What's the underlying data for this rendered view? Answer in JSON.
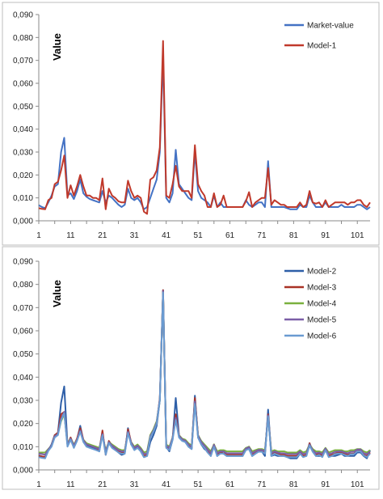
{
  "chart_data": [
    {
      "type": "line",
      "ylabel": "Value",
      "ylim": [
        0,
        0.09
      ],
      "y_ticks": [
        "0,000",
        "0,010",
        "0,020",
        "0,030",
        "0,040",
        "0,050",
        "0,060",
        "0,070",
        "0,080",
        "0,090"
      ],
      "x_ticks": [
        "1",
        "11",
        "21",
        "31",
        "41",
        "51",
        "61",
        "71",
        "81",
        "91",
        "101"
      ],
      "xlim": [
        1,
        105
      ],
      "legend_position": "top-right",
      "series": [
        {
          "name": "Market-value",
          "color": "#4472C4",
          "values": [
            0.0068,
            0.006,
            0.0055,
            0.008,
            0.011,
            0.015,
            0.016,
            0.03,
            0.0362,
            0.011,
            0.012,
            0.0095,
            0.013,
            0.018,
            0.012,
            0.0105,
            0.0095,
            0.009,
            0.0085,
            0.008,
            0.013,
            0.008,
            0.011,
            0.01,
            0.0085,
            0.007,
            0.006,
            0.007,
            0.014,
            0.01,
            0.009,
            0.01,
            0.008,
            0.005,
            0.006,
            0.01,
            0.014,
            0.018,
            0.03,
            0.072,
            0.01,
            0.008,
            0.012,
            0.031,
            0.016,
            0.014,
            0.012,
            0.01,
            0.009,
            0.03,
            0.013,
            0.01,
            0.009,
            0.008,
            0.006,
            0.011,
            0.006,
            0.008,
            0.006,
            0.006,
            0.006,
            0.006,
            0.006,
            0.006,
            0.006,
            0.009,
            0.007,
            0.006,
            0.007,
            0.008,
            0.008,
            0.006,
            0.026,
            0.006,
            0.006,
            0.006,
            0.006,
            0.006,
            0.0055,
            0.005,
            0.005,
            0.005,
            0.007,
            0.006,
            0.006,
            0.011,
            0.008,
            0.006,
            0.006,
            0.006,
            0.008,
            0.006,
            0.006,
            0.006,
            0.006,
            0.007,
            0.006,
            0.006,
            0.006,
            0.006,
            0.007,
            0.007,
            0.006,
            0.005,
            0.006
          ]
        },
        {
          "name": "Model-1",
          "color": "#C0392B",
          "values": [
            0.0055,
            0.0052,
            0.005,
            0.009,
            0.01,
            0.016,
            0.017,
            0.022,
            0.0285,
            0.01,
            0.0155,
            0.011,
            0.015,
            0.02,
            0.015,
            0.011,
            0.011,
            0.01,
            0.01,
            0.009,
            0.0185,
            0.005,
            0.014,
            0.011,
            0.01,
            0.0085,
            0.008,
            0.008,
            0.0175,
            0.013,
            0.01,
            0.011,
            0.01,
            0.004,
            0.003,
            0.018,
            0.019,
            0.022,
            0.032,
            0.0785,
            0.011,
            0.01,
            0.016,
            0.024,
            0.015,
            0.013,
            0.013,
            0.013,
            0.01,
            0.033,
            0.016,
            0.013,
            0.011,
            0.006,
            0.006,
            0.012,
            0.006,
            0.007,
            0.011,
            0.006,
            0.006,
            0.006,
            0.006,
            0.006,
            0.006,
            0.0085,
            0.0125,
            0.006,
            0.008,
            0.009,
            0.01,
            0.01,
            0.023,
            0.007,
            0.009,
            0.008,
            0.007,
            0.007,
            0.006,
            0.006,
            0.006,
            0.006,
            0.008,
            0.006,
            0.007,
            0.013,
            0.008,
            0.0075,
            0.008,
            0.006,
            0.009,
            0.006,
            0.007,
            0.008,
            0.008,
            0.008,
            0.008,
            0.007,
            0.008,
            0.008,
            0.009,
            0.009,
            0.007,
            0.006,
            0.008
          ]
        }
      ]
    },
    {
      "type": "line",
      "ylabel": "Value",
      "ylim": [
        0,
        0.09
      ],
      "y_ticks": [
        "0,000",
        "0,010",
        "0,020",
        "0,030",
        "0,040",
        "0,050",
        "0,060",
        "0,070",
        "0,080",
        "0,090"
      ],
      "x_ticks": [
        "1",
        "11",
        "21",
        "31",
        "41",
        "51",
        "61",
        "71",
        "81",
        "91",
        "101"
      ],
      "xlim": [
        1,
        105
      ],
      "legend_position": "top-right",
      "series": [
        {
          "name": "Model-2",
          "color": "#2E5FA8",
          "values": [
            0.0062,
            0.0058,
            0.0055,
            0.0085,
            0.011,
            0.015,
            0.016,
            0.029,
            0.036,
            0.011,
            0.013,
            0.01,
            0.013,
            0.019,
            0.0125,
            0.0105,
            0.01,
            0.0095,
            0.009,
            0.008,
            0.016,
            0.007,
            0.012,
            0.01,
            0.009,
            0.0075,
            0.0065,
            0.007,
            0.018,
            0.011,
            0.009,
            0.01,
            0.008,
            0.0055,
            0.006,
            0.012,
            0.015,
            0.019,
            0.03,
            0.0775,
            0.01,
            0.008,
            0.013,
            0.031,
            0.015,
            0.013,
            0.012,
            0.01,
            0.009,
            0.032,
            0.014,
            0.011,
            0.009,
            0.008,
            0.006,
            0.011,
            0.006,
            0.0075,
            0.007,
            0.006,
            0.006,
            0.006,
            0.006,
            0.006,
            0.006,
            0.009,
            0.009,
            0.006,
            0.007,
            0.008,
            0.008,
            0.006,
            0.026,
            0.006,
            0.0065,
            0.006,
            0.006,
            0.006,
            0.0055,
            0.005,
            0.005,
            0.005,
            0.007,
            0.006,
            0.006,
            0.0115,
            0.008,
            0.006,
            0.006,
            0.006,
            0.009,
            0.006,
            0.006,
            0.006,
            0.0065,
            0.007,
            0.006,
            0.006,
            0.006,
            0.006,
            0.0075,
            0.0075,
            0.006,
            0.005,
            0.0085
          ]
        },
        {
          "name": "Model-3",
          "color": "#A93226",
          "values": [
            0.006,
            0.0058,
            0.0056,
            0.0088,
            0.0105,
            0.015,
            0.016,
            0.024,
            0.025,
            0.011,
            0.014,
            0.0105,
            0.0135,
            0.018,
            0.013,
            0.011,
            0.0105,
            0.01,
            0.0095,
            0.0085,
            0.017,
            0.0065,
            0.0125,
            0.0105,
            0.0095,
            0.008,
            0.0075,
            0.0075,
            0.0175,
            0.012,
            0.0095,
            0.0105,
            0.009,
            0.006,
            0.0065,
            0.014,
            0.017,
            0.02,
            0.031,
            0.0775,
            0.01,
            0.009,
            0.014,
            0.024,
            0.015,
            0.013,
            0.0125,
            0.011,
            0.0095,
            0.031,
            0.015,
            0.012,
            0.01,
            0.008,
            0.0065,
            0.011,
            0.0065,
            0.0075,
            0.008,
            0.0065,
            0.0065,
            0.0065,
            0.0065,
            0.0065,
            0.0065,
            0.009,
            0.01,
            0.0065,
            0.0075,
            0.0085,
            0.0085,
            0.0075,
            0.024,
            0.0065,
            0.0075,
            0.007,
            0.0065,
            0.0065,
            0.006,
            0.006,
            0.006,
            0.006,
            0.0075,
            0.006,
            0.0065,
            0.0115,
            0.008,
            0.0065,
            0.007,
            0.006,
            0.009,
            0.006,
            0.0065,
            0.007,
            0.0075,
            0.0075,
            0.007,
            0.0065,
            0.007,
            0.007,
            0.0085,
            0.0085,
            0.0065,
            0.006,
            0.0075
          ]
        },
        {
          "name": "Model-4",
          "color": "#7AB03E",
          "values": [
            0.0075,
            0.0075,
            0.0075,
            0.009,
            0.0105,
            0.0145,
            0.0155,
            0.021,
            0.024,
            0.0115,
            0.0135,
            0.011,
            0.013,
            0.0165,
            0.013,
            0.0115,
            0.011,
            0.0105,
            0.01,
            0.0095,
            0.015,
            0.0085,
            0.012,
            0.011,
            0.01,
            0.009,
            0.0085,
            0.0085,
            0.016,
            0.012,
            0.01,
            0.011,
            0.0095,
            0.0075,
            0.008,
            0.015,
            0.0175,
            0.021,
            0.03,
            0.077,
            0.011,
            0.01,
            0.014,
            0.022,
            0.015,
            0.0135,
            0.013,
            0.0115,
            0.0105,
            0.029,
            0.015,
            0.0125,
            0.011,
            0.0095,
            0.008,
            0.011,
            0.008,
            0.0085,
            0.0085,
            0.008,
            0.008,
            0.008,
            0.008,
            0.008,
            0.008,
            0.0095,
            0.01,
            0.008,
            0.0085,
            0.009,
            0.009,
            0.0085,
            0.023,
            0.008,
            0.0085,
            0.008,
            0.008,
            0.008,
            0.0075,
            0.0075,
            0.0075,
            0.0075,
            0.0085,
            0.0075,
            0.008,
            0.011,
            0.009,
            0.008,
            0.008,
            0.0075,
            0.0095,
            0.0075,
            0.008,
            0.0085,
            0.0085,
            0.0085,
            0.008,
            0.008,
            0.0085,
            0.0085,
            0.009,
            0.009,
            0.008,
            0.0075,
            0.0085
          ]
        },
        {
          "name": "Model-5",
          "color": "#7B5EA7",
          "values": [
            0.007,
            0.0068,
            0.0066,
            0.0088,
            0.0105,
            0.0145,
            0.0155,
            0.022,
            0.025,
            0.011,
            0.0135,
            0.0105,
            0.013,
            0.017,
            0.0128,
            0.011,
            0.0105,
            0.01,
            0.0095,
            0.009,
            0.0155,
            0.0078,
            0.012,
            0.0105,
            0.0095,
            0.0085,
            0.008,
            0.008,
            0.0165,
            0.0118,
            0.0095,
            0.0105,
            0.009,
            0.0068,
            0.0072,
            0.0145,
            0.017,
            0.0205,
            0.0305,
            0.0772,
            0.0105,
            0.0095,
            0.0138,
            0.0225,
            0.0148,
            0.0132,
            0.0126,
            0.011,
            0.01,
            0.0295,
            0.0148,
            0.012,
            0.0105,
            0.0088,
            0.0072,
            0.0108,
            0.0072,
            0.008,
            0.008,
            0.0072,
            0.0072,
            0.0072,
            0.0072,
            0.0072,
            0.0072,
            0.0092,
            0.0098,
            0.0072,
            0.008,
            0.0086,
            0.0086,
            0.008,
            0.0235,
            0.0072,
            0.008,
            0.0075,
            0.0072,
            0.0072,
            0.0068,
            0.0068,
            0.0068,
            0.0068,
            0.008,
            0.0068,
            0.0072,
            0.011,
            0.0085,
            0.0072,
            0.0075,
            0.0068,
            0.0092,
            0.0068,
            0.0072,
            0.0078,
            0.008,
            0.008,
            0.0075,
            0.0072,
            0.0078,
            0.0078,
            0.0088,
            0.0088,
            0.0072,
            0.0068,
            0.008
          ]
        },
        {
          "name": "Model-6",
          "color": "#6A9BD1",
          "values": [
            0.0055,
            0.0052,
            0.005,
            0.0082,
            0.01,
            0.014,
            0.015,
            0.0215,
            0.0245,
            0.01,
            0.013,
            0.0095,
            0.0125,
            0.0165,
            0.012,
            0.01,
            0.0095,
            0.009,
            0.0085,
            0.008,
            0.015,
            0.0065,
            0.0115,
            0.0095,
            0.0085,
            0.0075,
            0.007,
            0.007,
            0.016,
            0.011,
            0.0085,
            0.0095,
            0.008,
            0.0055,
            0.006,
            0.014,
            0.0165,
            0.02,
            0.03,
            0.0765,
            0.0095,
            0.0085,
            0.013,
            0.0215,
            0.014,
            0.0125,
            0.012,
            0.01,
            0.009,
            0.0285,
            0.014,
            0.011,
            0.0095,
            0.0075,
            0.006,
            0.01,
            0.006,
            0.007,
            0.007,
            0.006,
            0.006,
            0.006,
            0.006,
            0.006,
            0.006,
            0.0085,
            0.009,
            0.006,
            0.007,
            0.0078,
            0.0078,
            0.007,
            0.023,
            0.006,
            0.007,
            0.0065,
            0.006,
            0.006,
            0.0055,
            0.0055,
            0.0055,
            0.0055,
            0.007,
            0.0055,
            0.006,
            0.0105,
            0.0078,
            0.006,
            0.0065,
            0.0055,
            0.0085,
            0.0055,
            0.006,
            0.0068,
            0.007,
            0.007,
            0.0065,
            0.006,
            0.0068,
            0.0068,
            0.008,
            0.008,
            0.0062,
            0.0055,
            0.007
          ]
        }
      ]
    }
  ]
}
